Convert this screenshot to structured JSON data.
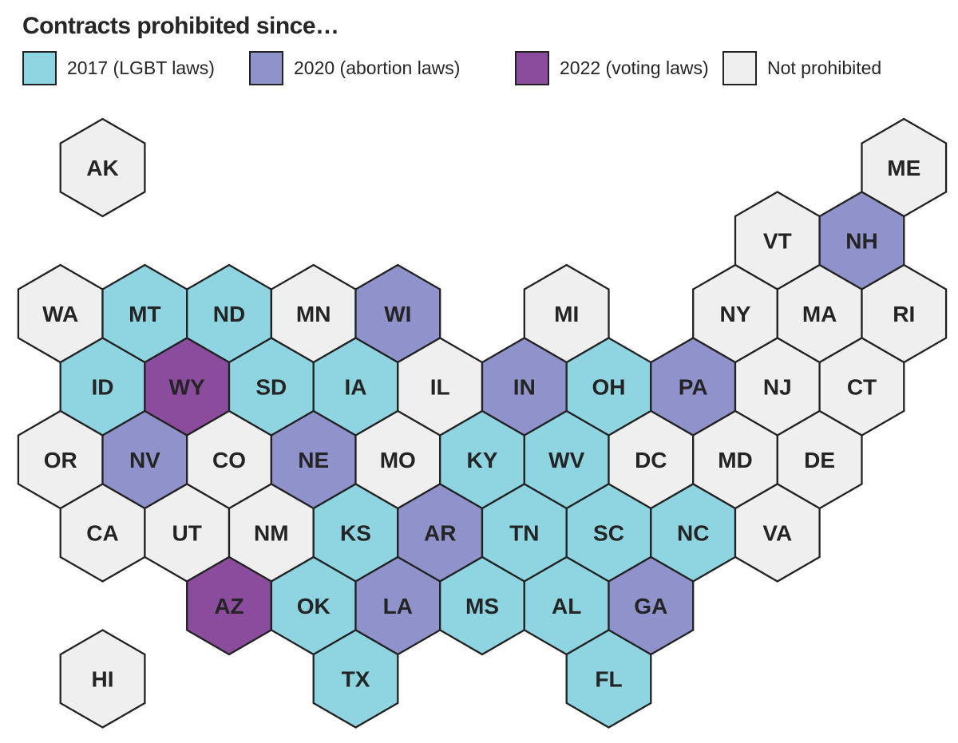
{
  "title": "Contracts prohibited since…",
  "legend": {
    "items": [
      {
        "key": "2017",
        "label": "2017 (LGBT laws)",
        "color": "#8ed5e1"
      },
      {
        "key": "2020",
        "label": "2020 (abortion laws)",
        "color": "#9092cb"
      },
      {
        "key": "2022",
        "label": "2022 (voting laws)",
        "color": "#8b4c9e"
      },
      {
        "key": "none",
        "label": "Not prohibited",
        "color": "#efefef"
      }
    ]
  },
  "map": {
    "border_color": "#222222",
    "label_color": "#242424",
    "states": [
      {
        "abbr": "AK",
        "col": 1,
        "row": 0,
        "cat": "none"
      },
      {
        "abbr": "ME",
        "col": 20,
        "row": 0,
        "cat": "none"
      },
      {
        "abbr": "VT",
        "col": 17,
        "row": 1,
        "cat": "none"
      },
      {
        "abbr": "NH",
        "col": 19,
        "row": 1,
        "cat": "2020"
      },
      {
        "abbr": "WA",
        "col": 0,
        "row": 2,
        "cat": "none"
      },
      {
        "abbr": "MT",
        "col": 2,
        "row": 2,
        "cat": "2017"
      },
      {
        "abbr": "ND",
        "col": 4,
        "row": 2,
        "cat": "2017"
      },
      {
        "abbr": "MN",
        "col": 6,
        "row": 2,
        "cat": "none"
      },
      {
        "abbr": "WI",
        "col": 8,
        "row": 2,
        "cat": "2020"
      },
      {
        "abbr": "MI",
        "col": 12,
        "row": 2,
        "cat": "none"
      },
      {
        "abbr": "NY",
        "col": 16,
        "row": 2,
        "cat": "none"
      },
      {
        "abbr": "MA",
        "col": 18,
        "row": 2,
        "cat": "none"
      },
      {
        "abbr": "RI",
        "col": 20,
        "row": 2,
        "cat": "none"
      },
      {
        "abbr": "ID",
        "col": 1,
        "row": 3,
        "cat": "2017"
      },
      {
        "abbr": "WY",
        "col": 3,
        "row": 3,
        "cat": "2022"
      },
      {
        "abbr": "SD",
        "col": 5,
        "row": 3,
        "cat": "2017"
      },
      {
        "abbr": "IA",
        "col": 7,
        "row": 3,
        "cat": "2017"
      },
      {
        "abbr": "IL",
        "col": 9,
        "row": 3,
        "cat": "none"
      },
      {
        "abbr": "IN",
        "col": 11,
        "row": 3,
        "cat": "2020"
      },
      {
        "abbr": "OH",
        "col": 13,
        "row": 3,
        "cat": "2017"
      },
      {
        "abbr": "PA",
        "col": 15,
        "row": 3,
        "cat": "2020"
      },
      {
        "abbr": "NJ",
        "col": 17,
        "row": 3,
        "cat": "none"
      },
      {
        "abbr": "CT",
        "col": 19,
        "row": 3,
        "cat": "none"
      },
      {
        "abbr": "OR",
        "col": 0,
        "row": 4,
        "cat": "none"
      },
      {
        "abbr": "NV",
        "col": 2,
        "row": 4,
        "cat": "2020"
      },
      {
        "abbr": "CO",
        "col": 4,
        "row": 4,
        "cat": "none"
      },
      {
        "abbr": "NE",
        "col": 6,
        "row": 4,
        "cat": "2020"
      },
      {
        "abbr": "MO",
        "col": 8,
        "row": 4,
        "cat": "none"
      },
      {
        "abbr": "KY",
        "col": 10,
        "row": 4,
        "cat": "2017"
      },
      {
        "abbr": "WV",
        "col": 12,
        "row": 4,
        "cat": "2017"
      },
      {
        "abbr": "DC",
        "col": 14,
        "row": 4,
        "cat": "none"
      },
      {
        "abbr": "MD",
        "col": 16,
        "row": 4,
        "cat": "none"
      },
      {
        "abbr": "DE",
        "col": 18,
        "row": 4,
        "cat": "none"
      },
      {
        "abbr": "CA",
        "col": 1,
        "row": 5,
        "cat": "none"
      },
      {
        "abbr": "UT",
        "col": 3,
        "row": 5,
        "cat": "none"
      },
      {
        "abbr": "NM",
        "col": 5,
        "row": 5,
        "cat": "none"
      },
      {
        "abbr": "KS",
        "col": 7,
        "row": 5,
        "cat": "2017"
      },
      {
        "abbr": "AR",
        "col": 9,
        "row": 5,
        "cat": "2020"
      },
      {
        "abbr": "TN",
        "col": 11,
        "row": 5,
        "cat": "2017"
      },
      {
        "abbr": "SC",
        "col": 13,
        "row": 5,
        "cat": "2017"
      },
      {
        "abbr": "NC",
        "col": 15,
        "row": 5,
        "cat": "2017"
      },
      {
        "abbr": "VA",
        "col": 17,
        "row": 5,
        "cat": "none"
      },
      {
        "abbr": "AZ",
        "col": 4,
        "row": 6,
        "cat": "2022"
      },
      {
        "abbr": "OK",
        "col": 6,
        "row": 6,
        "cat": "2017"
      },
      {
        "abbr": "LA",
        "col": 8,
        "row": 6,
        "cat": "2020"
      },
      {
        "abbr": "MS",
        "col": 10,
        "row": 6,
        "cat": "2017"
      },
      {
        "abbr": "AL",
        "col": 12,
        "row": 6,
        "cat": "2017"
      },
      {
        "abbr": "GA",
        "col": 14,
        "row": 6,
        "cat": "2020"
      },
      {
        "abbr": "TX",
        "col": 7,
        "row": 7,
        "cat": "2017"
      },
      {
        "abbr": "FL",
        "col": 13,
        "row": 7,
        "cat": "2017"
      },
      {
        "abbr": "HI",
        "col": 1,
        "row": 7,
        "cat": "none"
      }
    ]
  },
  "chart_data": {
    "type": "heatmap",
    "title": "Contracts prohibited since…",
    "legend_entries": [
      "2017 (LGBT laws)",
      "2020 (abortion laws)",
      "2022 (voting laws)",
      "Not prohibited"
    ],
    "legend_position": "top",
    "categories_by_state": {
      "2017 (LGBT laws)": [
        "MT",
        "ND",
        "ID",
        "SD",
        "IA",
        "OH",
        "KY",
        "WV",
        "KS",
        "TN",
        "SC",
        "NC",
        "OK",
        "MS",
        "AL",
        "TX",
        "FL"
      ],
      "2020 (abortion laws)": [
        "NH",
        "WI",
        "IN",
        "PA",
        "NV",
        "NE",
        "AR",
        "LA",
        "GA"
      ],
      "2022 (voting laws)": [
        "WY",
        "AZ"
      ],
      "Not prohibited": [
        "AK",
        "ME",
        "VT",
        "WA",
        "MN",
        "MI",
        "NY",
        "MA",
        "RI",
        "IL",
        "NJ",
        "CT",
        "OR",
        "CO",
        "MO",
        "DC",
        "MD",
        "DE",
        "CA",
        "UT",
        "NM",
        "VA",
        "HI"
      ]
    }
  }
}
